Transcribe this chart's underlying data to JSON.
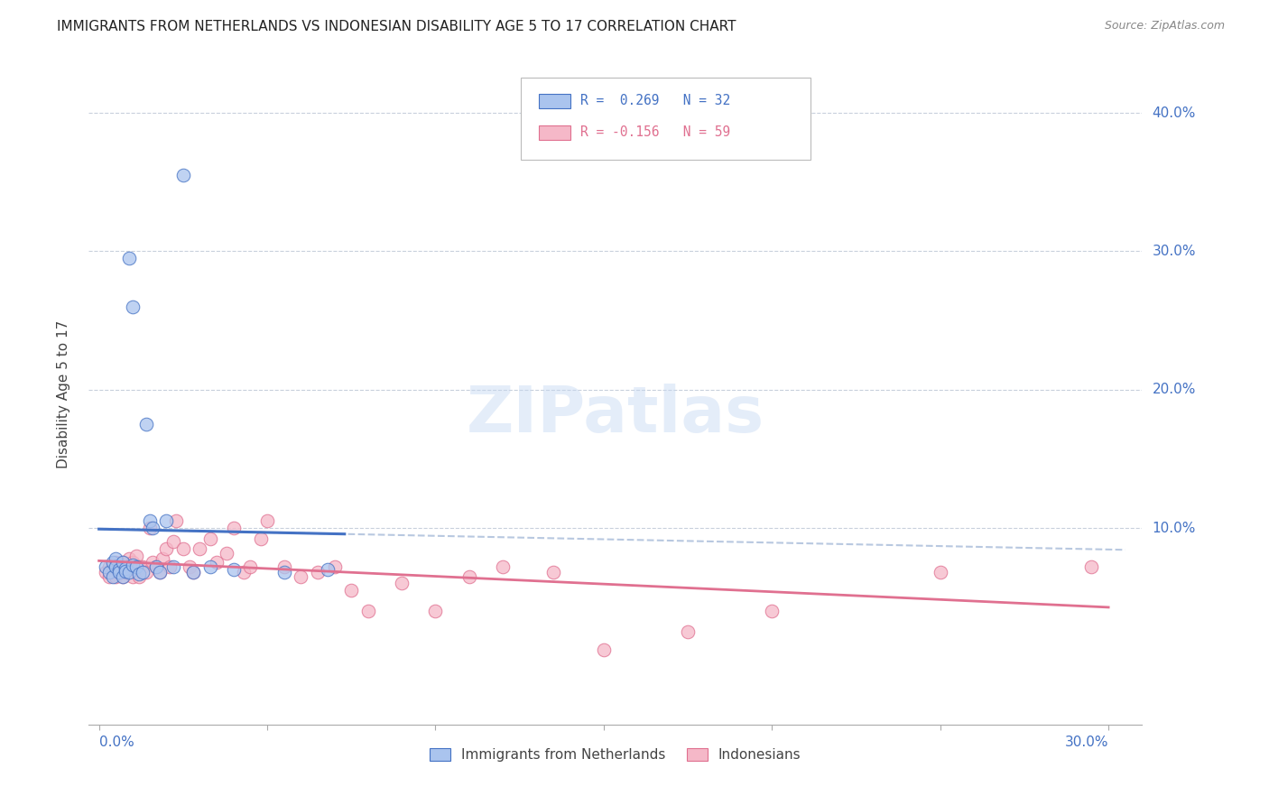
{
  "title": "IMMIGRANTS FROM NETHERLANDS VS INDONESIAN DISABILITY AGE 5 TO 17 CORRELATION CHART",
  "source": "Source: ZipAtlas.com",
  "ylabel": "Disability Age 5 to 17",
  "color_blue": "#aac4ee",
  "color_pink": "#f5b8c8",
  "line_blue": "#4472c4",
  "line_pink": "#e07090",
  "line_dashed_color": "#b8c8e0",
  "legend_r1_text": "R =  0.269   N = 32",
  "legend_r2_text": "R = -0.156   N = 59",
  "legend_r1_color": "#4472c4",
  "legend_r2_color": "#e07090",
  "ytick_positions": [
    0.1,
    0.2,
    0.3,
    0.4
  ],
  "ytick_labels": [
    "10.0%",
    "20.0%",
    "30.0%",
    "40.0%"
  ],
  "xlim": [
    -0.003,
    0.31
  ],
  "ylim": [
    -0.042,
    0.435
  ],
  "nl_x": [
    0.002,
    0.003,
    0.004,
    0.004,
    0.005,
    0.005,
    0.006,
    0.006,
    0.007,
    0.007,
    0.008,
    0.008,
    0.009,
    0.009,
    0.01,
    0.01,
    0.011,
    0.012,
    0.013,
    0.014,
    0.015,
    0.016,
    0.017,
    0.018,
    0.02,
    0.022,
    0.025,
    0.028,
    0.033,
    0.04,
    0.055,
    0.068
  ],
  "nl_y": [
    0.072,
    0.068,
    0.075,
    0.065,
    0.078,
    0.072,
    0.07,
    0.068,
    0.075,
    0.065,
    0.071,
    0.069,
    0.295,
    0.068,
    0.073,
    0.26,
    0.072,
    0.067,
    0.068,
    0.175,
    0.105,
    0.1,
    0.072,
    0.068,
    0.105,
    0.072,
    0.355,
    0.068,
    0.072,
    0.07,
    0.068,
    0.07
  ],
  "id_x": [
    0.002,
    0.003,
    0.003,
    0.004,
    0.004,
    0.005,
    0.005,
    0.006,
    0.006,
    0.007,
    0.007,
    0.008,
    0.008,
    0.009,
    0.009,
    0.01,
    0.01,
    0.011,
    0.012,
    0.012,
    0.013,
    0.014,
    0.015,
    0.016,
    0.017,
    0.018,
    0.019,
    0.02,
    0.021,
    0.022,
    0.023,
    0.025,
    0.027,
    0.028,
    0.03,
    0.033,
    0.035,
    0.038,
    0.04,
    0.043,
    0.045,
    0.048,
    0.05,
    0.055,
    0.06,
    0.065,
    0.07,
    0.075,
    0.08,
    0.09,
    0.1,
    0.11,
    0.12,
    0.135,
    0.15,
    0.175,
    0.2,
    0.25,
    0.295
  ],
  "id_y": [
    0.068,
    0.072,
    0.065,
    0.068,
    0.072,
    0.075,
    0.065,
    0.072,
    0.068,
    0.075,
    0.065,
    0.072,
    0.068,
    0.072,
    0.078,
    0.075,
    0.065,
    0.08,
    0.072,
    0.065,
    0.072,
    0.068,
    0.1,
    0.075,
    0.072,
    0.068,
    0.078,
    0.085,
    0.072,
    0.09,
    0.105,
    0.085,
    0.072,
    0.068,
    0.085,
    0.092,
    0.075,
    0.082,
    0.1,
    0.068,
    0.072,
    0.092,
    0.105,
    0.072,
    0.065,
    0.068,
    0.072,
    0.055,
    0.04,
    0.06,
    0.04,
    0.065,
    0.072,
    0.068,
    0.012,
    0.025,
    0.04,
    0.068,
    0.072
  ]
}
